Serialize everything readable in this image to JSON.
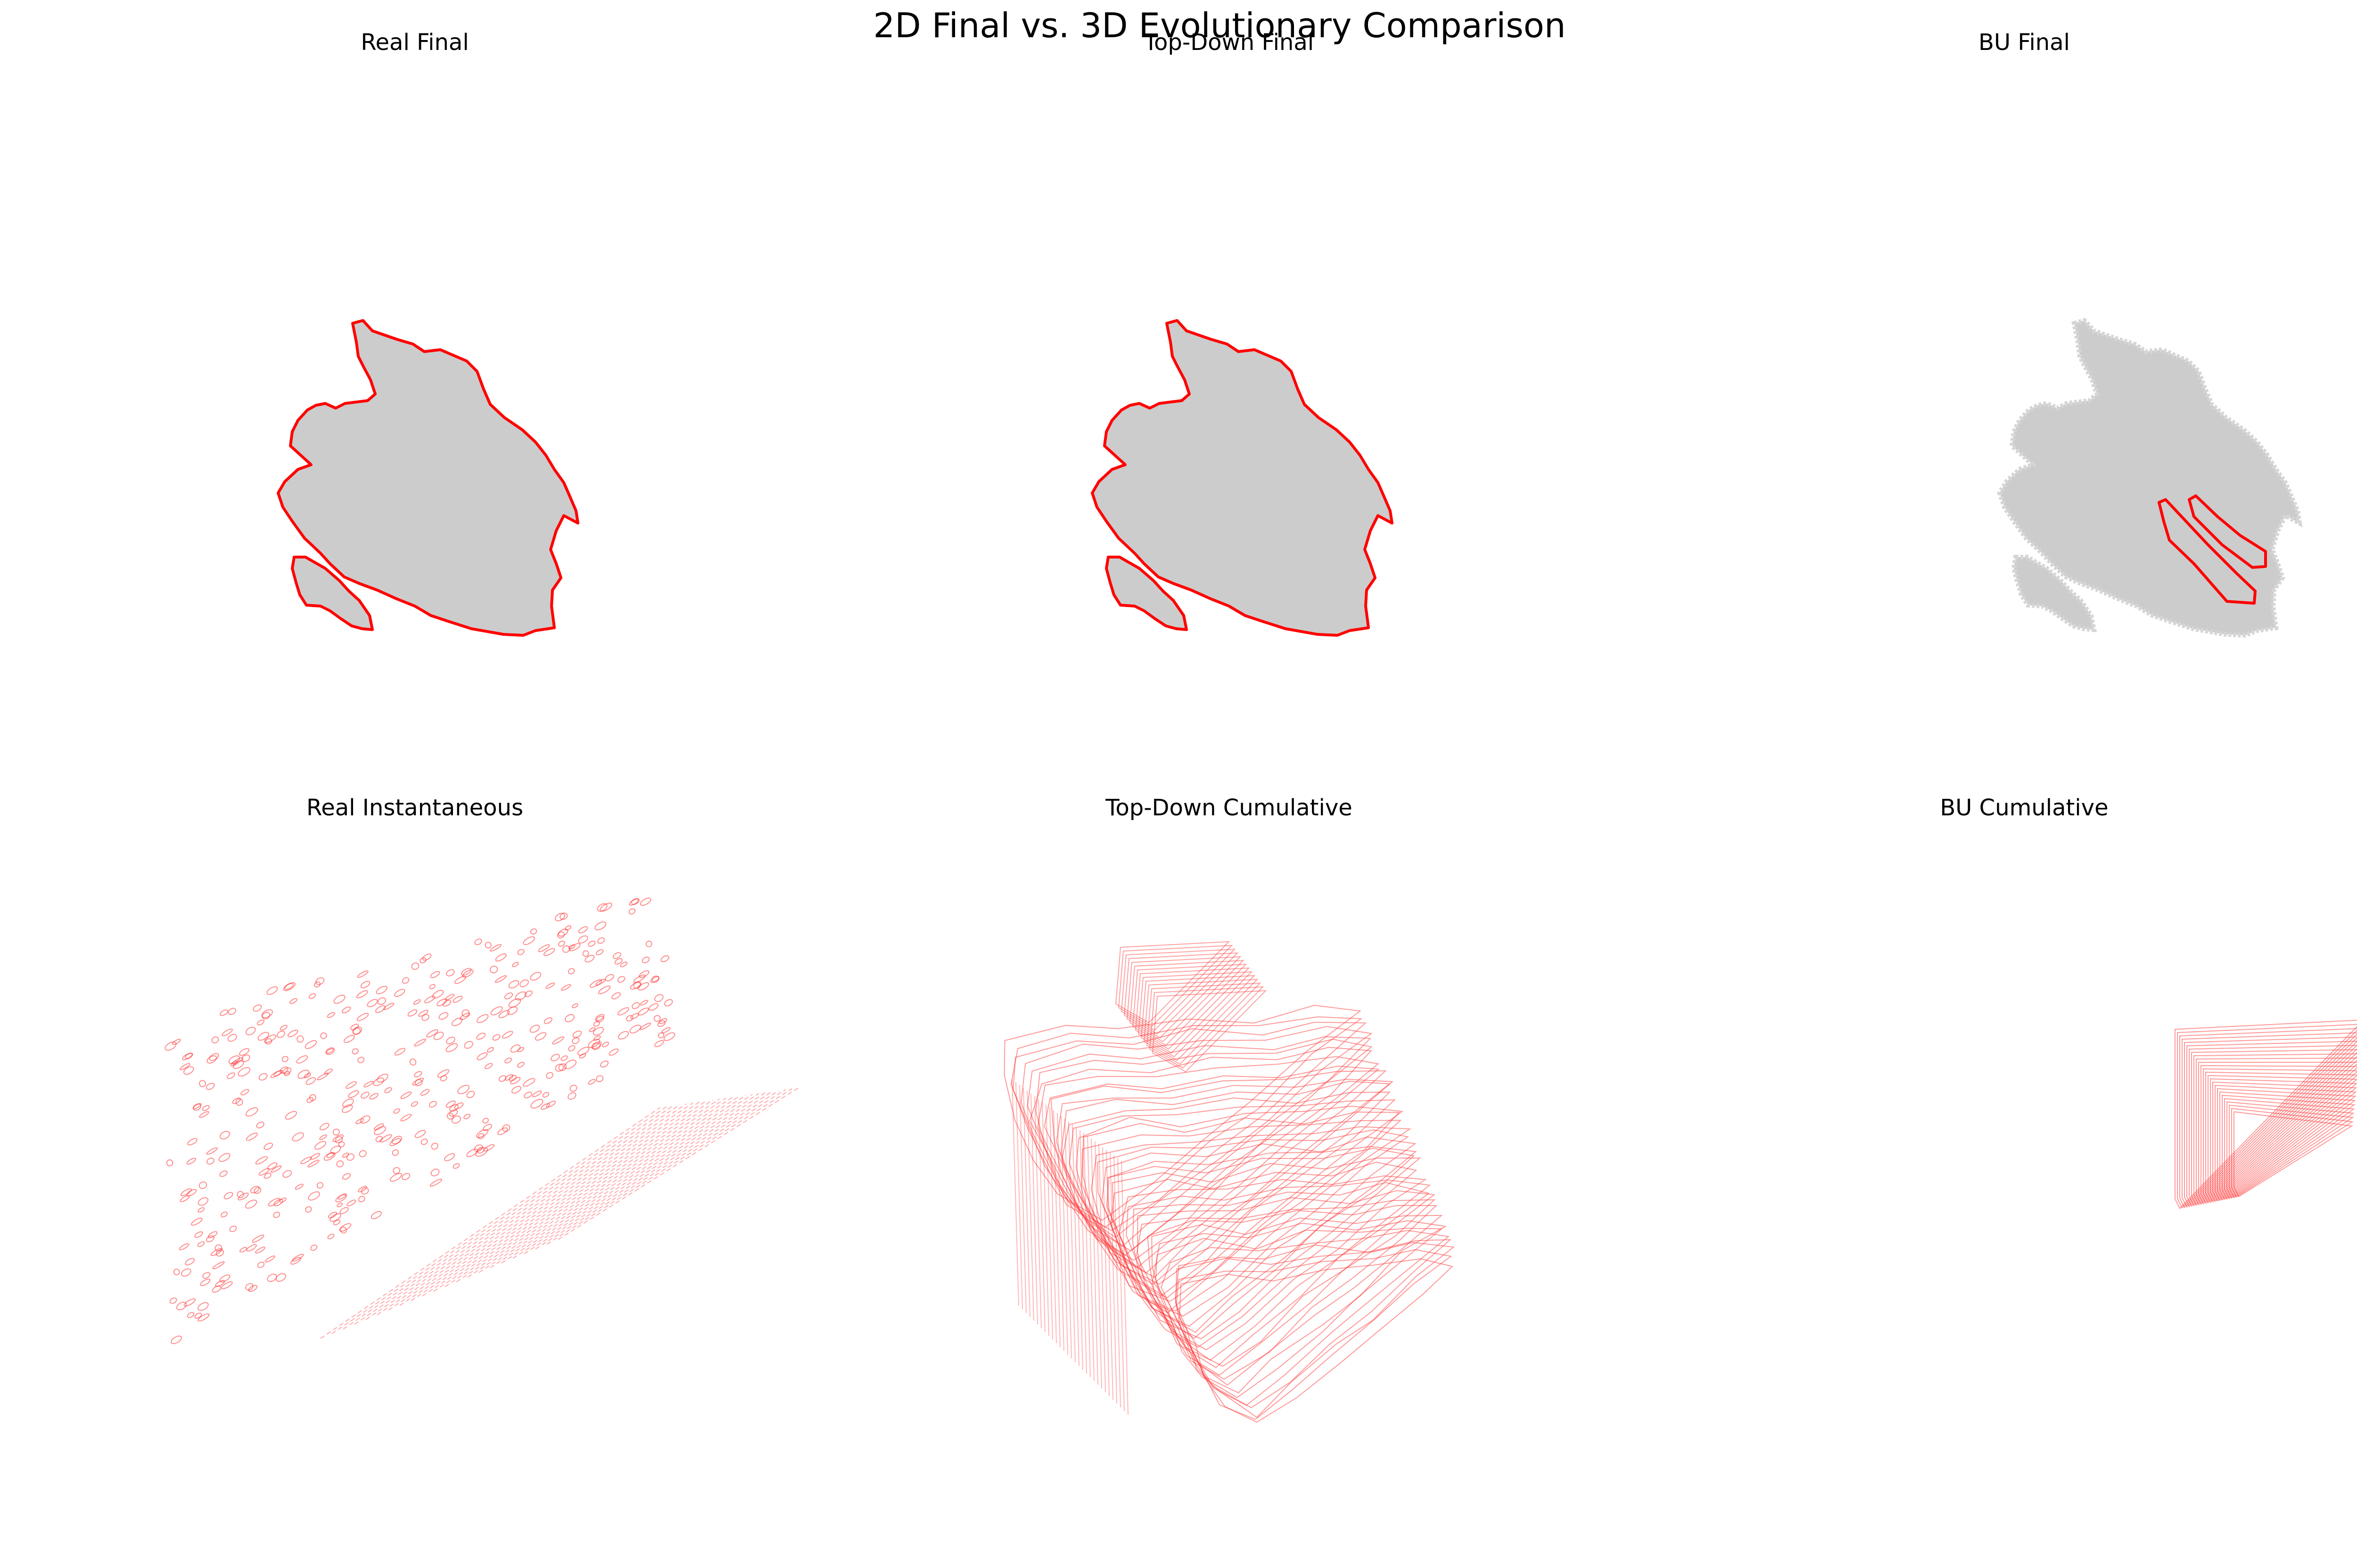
{
  "suptitle": "2D Final vs. 3D Evolutionary Comparison",
  "colors": {
    "fill": "#cccccc",
    "outline": "#ff0000",
    "wire": "#ff3333",
    "background": "#ffffff"
  },
  "chart_data": [
    {
      "type": "map",
      "title": "Real Final",
      "layers": [
        "burned-area-fill",
        "perimeter-outline"
      ],
      "axes": "off"
    },
    {
      "type": "map",
      "title": "Top-Down Final",
      "layers": [
        "burned-area-fill",
        "perimeter-outline"
      ],
      "axes": "off"
    },
    {
      "type": "map",
      "title": "BU Final",
      "layers": [
        "burned-area-fill",
        "perimeter-outline"
      ],
      "axes": "off"
    },
    {
      "type": "3d-wireframe",
      "title": "Real Instantaneous",
      "style": "scattered small perimeter rings per time step",
      "axes": "off"
    },
    {
      "type": "3d-wireframe",
      "title": "Top-Down Cumulative",
      "style": "stacked cumulative perimeter layers",
      "axes": "off"
    },
    {
      "type": "3d-wireframe",
      "title": "BU Cumulative",
      "style": "stacked cumulative perimeter layers (small region)",
      "axes": "off"
    }
  ]
}
